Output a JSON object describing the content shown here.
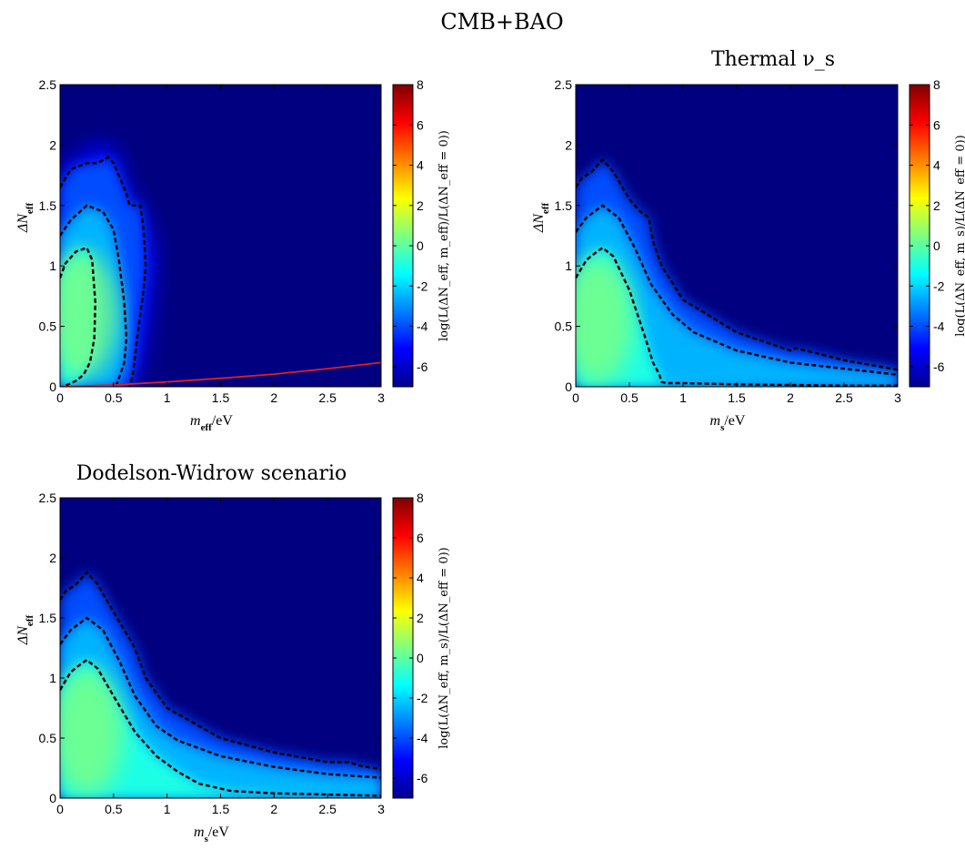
{
  "figure": {
    "suptitle": "CMB+BAO"
  },
  "chart_data": [
    {
      "type": "heatmap",
      "title": "",
      "xlabel": "m_eff/eV",
      "ylabel": "ΔN_eff",
      "colorbar_label": "log(L(ΔN_eff, m_eff)/L(ΔN_eff = 0))",
      "xlim": [
        0,
        3
      ],
      "ylim": [
        0,
        2.5
      ],
      "clim": [
        -7,
        8
      ],
      "xticks": [
        "0",
        "0.5",
        "1",
        "1.5",
        "2",
        "2.5",
        "3"
      ],
      "yticks": [
        "0",
        "0.5",
        "1",
        "1.5",
        "2",
        "2.5"
      ],
      "cticks": [
        "-6",
        "-4",
        "-2",
        "0",
        "2",
        "4",
        "6",
        "8"
      ],
      "colormap": "jet",
      "peak": {
        "x": 0.2,
        "y": 0.6,
        "value": 0.5
      },
      "contours": [
        {
          "name": "inner",
          "style": "dashed",
          "x": [
            0.0,
            0.05,
            0.15,
            0.25,
            0.3,
            0.33,
            0.32,
            0.28,
            0.22,
            0.15,
            0.08,
            0.02
          ],
          "y": [
            0.9,
            1.02,
            1.12,
            1.15,
            1.05,
            0.7,
            0.4,
            0.2,
            0.1,
            0.05,
            0.02,
            0.0
          ]
        },
        {
          "name": "middle",
          "style": "dashed",
          "x": [
            0.0,
            0.1,
            0.25,
            0.4,
            0.5,
            0.55,
            0.6,
            0.62,
            0.6,
            0.55,
            0.52
          ],
          "y": [
            1.25,
            1.38,
            1.5,
            1.45,
            1.3,
            1.05,
            0.7,
            0.4,
            0.2,
            0.07,
            0.0
          ]
        },
        {
          "name": "outer",
          "style": "dashed",
          "x": [
            0.0,
            0.1,
            0.25,
            0.35,
            0.45,
            0.5,
            0.62,
            0.65,
            0.75,
            0.78,
            0.8,
            0.78,
            0.75,
            0.72,
            0.7,
            0.68,
            0.65
          ],
          "y": [
            1.65,
            1.8,
            1.85,
            1.85,
            1.9,
            1.85,
            1.6,
            1.5,
            1.5,
            1.3,
            1.0,
            0.8,
            0.6,
            0.4,
            0.25,
            0.1,
            0.0
          ]
        }
      ],
      "lines": [
        {
          "name": "bound",
          "color": "#e02020",
          "x": [
            0,
            0.5,
            1,
            1.5,
            2,
            2.5,
            3
          ],
          "y": [
            0,
            0.015,
            0.04,
            0.07,
            0.105,
            0.15,
            0.2
          ]
        }
      ],
      "extent_outer": {
        "x": [
          0.0,
          0.08,
          0.3,
          0.5,
          0.65,
          0.8,
          0.9,
          0.85,
          0.75,
          0.55
        ],
        "y": [
          1.8,
          1.85,
          2.0,
          2.0,
          1.6,
          1.4,
          1.1,
          0.6,
          0.1,
          0.0
        ]
      }
    },
    {
      "type": "heatmap",
      "title": "Thermal ν_s",
      "xlabel": "m_s/eV",
      "ylabel": "ΔN_eff",
      "colorbar_label": "log(L(ΔN_eff, m_s)/L(ΔN_eff = 0))",
      "xlim": [
        0,
        3
      ],
      "ylim": [
        0,
        2.5
      ],
      "clim": [
        -7,
        8
      ],
      "xticks": [
        "0",
        "0.5",
        "1",
        "1.5",
        "2",
        "2.5",
        "3"
      ],
      "yticks": [
        "0",
        "0.5",
        "1",
        "1.5",
        "2",
        "2.5"
      ],
      "cticks": [
        "-6",
        "-4",
        "-2",
        "0",
        "2",
        "4",
        "6",
        "8"
      ],
      "colormap": "jet",
      "peak": {
        "x": 0.2,
        "y": 0.55,
        "value": 0.5
      },
      "contours": [
        {
          "name": "inner",
          "style": "dashed",
          "x": [
            0.0,
            0.1,
            0.2,
            0.25,
            0.35,
            0.5,
            0.65,
            0.72,
            0.78,
            0.8,
            0.85,
            1.0,
            1.5,
            2.0,
            2.5,
            3.0
          ],
          "y": [
            0.9,
            1.05,
            1.12,
            1.15,
            1.08,
            0.8,
            0.4,
            0.2,
            0.1,
            0.04,
            0.03,
            0.03,
            0.02,
            0.015,
            0.01,
            0.01
          ]
        },
        {
          "name": "middle",
          "style": "dashed",
          "x": [
            0.0,
            0.1,
            0.25,
            0.4,
            0.55,
            0.7,
            0.9,
            1.1,
            1.5,
            2.0,
            2.5,
            3.0
          ],
          "y": [
            1.28,
            1.4,
            1.5,
            1.4,
            1.15,
            0.85,
            0.6,
            0.45,
            0.3,
            0.2,
            0.15,
            0.1
          ]
        },
        {
          "name": "outer",
          "style": "dashed",
          "x": [
            0.0,
            0.05,
            0.15,
            0.25,
            0.35,
            0.5,
            0.55,
            0.6,
            0.68,
            0.72,
            0.8,
            1.0,
            1.5,
            2.0,
            2.05,
            2.5,
            3.0
          ],
          "y": [
            1.65,
            1.72,
            1.78,
            1.88,
            1.78,
            1.55,
            1.5,
            1.45,
            1.4,
            1.2,
            1.0,
            0.72,
            0.45,
            0.3,
            0.32,
            0.22,
            0.14
          ]
        }
      ],
      "lines": []
    },
    {
      "type": "heatmap",
      "title": "Dodelson-Widrow scenario",
      "xlabel": "m_s/eV",
      "ylabel": "ΔN_eff",
      "colorbar_label": "log(L(ΔN_eff, m_s)/L(ΔN_eff = 0))",
      "xlim": [
        0,
        3
      ],
      "ylim": [
        0,
        2.5
      ],
      "clim": [
        -7,
        8
      ],
      "xticks": [
        "0",
        "0.5",
        "1",
        "1.5",
        "2",
        "2.5",
        "3"
      ],
      "yticks": [
        "0",
        "0.5",
        "1",
        "1.5",
        "2",
        "2.5"
      ],
      "cticks": [
        "-6",
        "-4",
        "-2",
        "0",
        "2",
        "4",
        "6",
        "8"
      ],
      "colormap": "jet",
      "peak": {
        "x": 0.25,
        "y": 0.55,
        "value": 0.5
      },
      "contours": [
        {
          "name": "inner",
          "style": "dashed",
          "x": [
            0.0,
            0.1,
            0.2,
            0.25,
            0.35,
            0.5,
            0.7,
            0.9,
            1.1,
            1.3,
            1.6,
            2.0,
            2.5,
            3.0
          ],
          "y": [
            0.9,
            1.05,
            1.12,
            1.15,
            1.08,
            0.85,
            0.55,
            0.35,
            0.22,
            0.12,
            0.06,
            0.04,
            0.03,
            0.02
          ]
        },
        {
          "name": "middle",
          "style": "dashed",
          "x": [
            0.0,
            0.1,
            0.25,
            0.4,
            0.55,
            0.7,
            0.9,
            1.1,
            1.5,
            2.0,
            2.5,
            3.0
          ],
          "y": [
            1.28,
            1.4,
            1.5,
            1.4,
            1.15,
            0.85,
            0.6,
            0.48,
            0.35,
            0.26,
            0.2,
            0.17
          ]
        },
        {
          "name": "outer",
          "style": "dashed",
          "x": [
            0.0,
            0.05,
            0.15,
            0.25,
            0.35,
            0.5,
            0.6,
            0.68,
            0.72,
            0.8,
            1.0,
            1.5,
            2.0,
            2.5,
            2.7,
            2.8,
            3.0
          ],
          "y": [
            1.65,
            1.72,
            1.78,
            1.88,
            1.78,
            1.55,
            1.4,
            1.28,
            1.2,
            1.0,
            0.75,
            0.5,
            0.38,
            0.3,
            0.3,
            0.27,
            0.24
          ]
        }
      ],
      "lines": []
    }
  ]
}
